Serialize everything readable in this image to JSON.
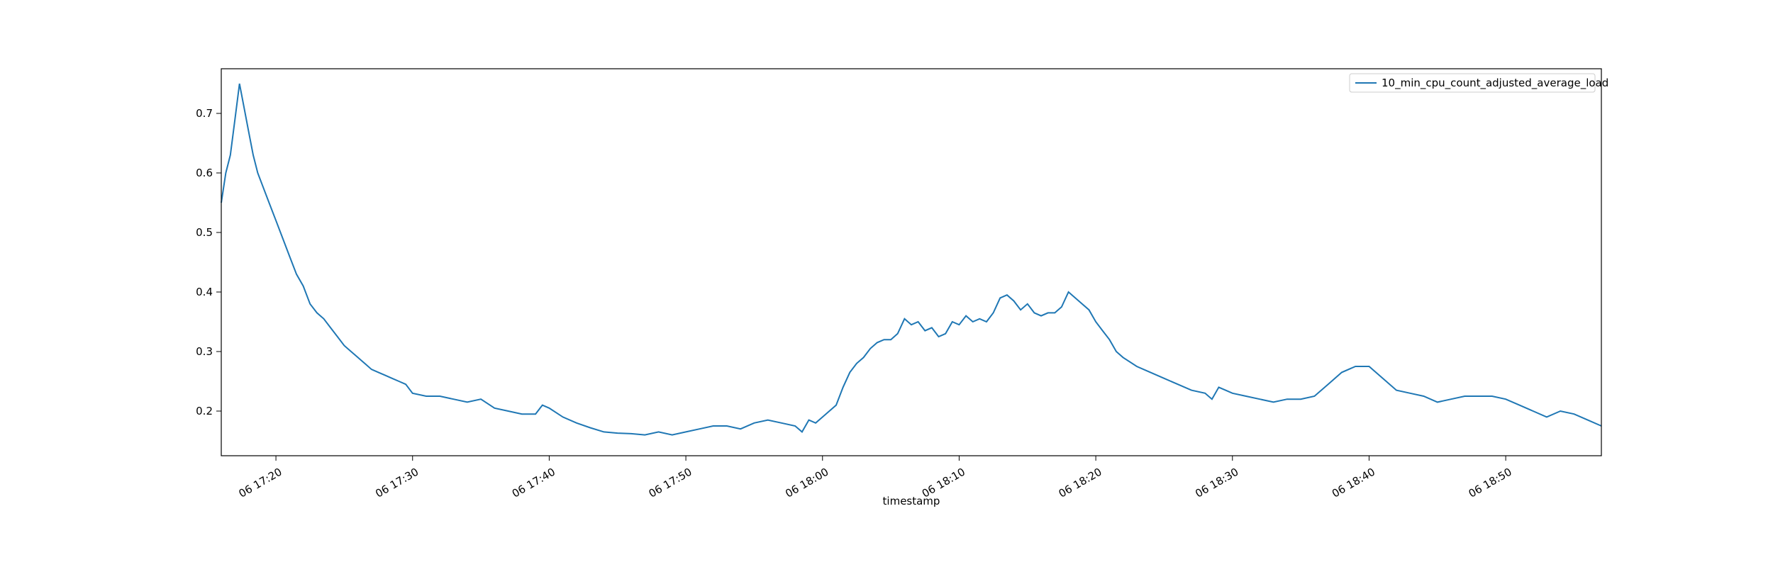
{
  "chart_data": {
    "type": "line",
    "title": "",
    "xlabel": "timestamp",
    "ylabel": "",
    "grid": false,
    "legend_placement": "top-right",
    "x_range": [
      "17:16:00",
      "18:57:00"
    ],
    "ylim": [
      0.125,
      0.775
    ],
    "x_ticks": [
      {
        "time": "17:20",
        "label": "06 17:20"
      },
      {
        "time": "17:30",
        "label": "06 17:30"
      },
      {
        "time": "17:40",
        "label": "06 17:40"
      },
      {
        "time": "17:50",
        "label": "06 17:50"
      },
      {
        "time": "18:00",
        "label": "06 18:00"
      },
      {
        "time": "18:10",
        "label": "06 18:10"
      },
      {
        "time": "18:20",
        "label": "06 18:20"
      },
      {
        "time": "18:30",
        "label": "06 18:30"
      },
      {
        "time": "18:40",
        "label": "06 18:40"
      },
      {
        "time": "18:50",
        "label": "06 18:50"
      }
    ],
    "y_ticks": [
      {
        "value": 0.2,
        "label": "0.2"
      },
      {
        "value": 0.3,
        "label": "0.3"
      },
      {
        "value": 0.4,
        "label": "0.4"
      },
      {
        "value": 0.5,
        "label": "0.5"
      },
      {
        "value": 0.6,
        "label": "0.6"
      },
      {
        "value": 0.7,
        "label": "0.7"
      }
    ],
    "series": [
      {
        "name": "10_min_cpu_count_adjusted_average_load",
        "color": "#1f77b4",
        "points": [
          [
            "17:16:00",
            0.55
          ],
          [
            "17:16:20",
            0.6
          ],
          [
            "17:16:40",
            0.63
          ],
          [
            "17:17:00",
            0.69
          ],
          [
            "17:17:20",
            0.75
          ],
          [
            "17:17:40",
            0.71
          ],
          [
            "17:18:00",
            0.67
          ],
          [
            "17:18:20",
            0.63
          ],
          [
            "17:18:40",
            0.6
          ],
          [
            "17:19:00",
            0.58
          ],
          [
            "17:19:30",
            0.55
          ],
          [
            "17:20:00",
            0.52
          ],
          [
            "17:20:30",
            0.49
          ],
          [
            "17:21:00",
            0.46
          ],
          [
            "17:21:30",
            0.43
          ],
          [
            "17:22:00",
            0.41
          ],
          [
            "17:22:30",
            0.38
          ],
          [
            "17:23:00",
            0.365
          ],
          [
            "17:23:30",
            0.355
          ],
          [
            "17:24:00",
            0.34
          ],
          [
            "17:24:30",
            0.325
          ],
          [
            "17:25:00",
            0.31
          ],
          [
            "17:25:30",
            0.3
          ],
          [
            "17:26:00",
            0.29
          ],
          [
            "17:26:30",
            0.28
          ],
          [
            "17:27:00",
            0.27
          ],
          [
            "17:27:30",
            0.265
          ],
          [
            "17:28:00",
            0.26
          ],
          [
            "17:28:30",
            0.255
          ],
          [
            "17:29:00",
            0.25
          ],
          [
            "17:29:30",
            0.245
          ],
          [
            "17:30:00",
            0.23
          ],
          [
            "17:31:00",
            0.225
          ],
          [
            "17:32:00",
            0.225
          ],
          [
            "17:33:00",
            0.22
          ],
          [
            "17:34:00",
            0.215
          ],
          [
            "17:35:00",
            0.22
          ],
          [
            "17:36:00",
            0.205
          ],
          [
            "17:37:00",
            0.2
          ],
          [
            "17:38:00",
            0.195
          ],
          [
            "17:39:00",
            0.195
          ],
          [
            "17:39:30",
            0.21
          ],
          [
            "17:40:00",
            0.205
          ],
          [
            "17:41:00",
            0.19
          ],
          [
            "17:42:00",
            0.18
          ],
          [
            "17:43:00",
            0.172
          ],
          [
            "17:44:00",
            0.165
          ],
          [
            "17:45:00",
            0.163
          ],
          [
            "17:46:00",
            0.162
          ],
          [
            "17:47:00",
            0.16
          ],
          [
            "17:48:00",
            0.165
          ],
          [
            "17:49:00",
            0.16
          ],
          [
            "17:50:00",
            0.165
          ],
          [
            "17:51:00",
            0.17
          ],
          [
            "17:52:00",
            0.175
          ],
          [
            "17:53:00",
            0.175
          ],
          [
            "17:54:00",
            0.17
          ],
          [
            "17:55:00",
            0.18
          ],
          [
            "17:56:00",
            0.185
          ],
          [
            "17:57:00",
            0.18
          ],
          [
            "17:58:00",
            0.175
          ],
          [
            "17:58:30",
            0.165
          ],
          [
            "17:59:00",
            0.185
          ],
          [
            "17:59:30",
            0.18
          ],
          [
            "18:00:00",
            0.19
          ],
          [
            "18:00:30",
            0.2
          ],
          [
            "18:01:00",
            0.21
          ],
          [
            "18:01:30",
            0.24
          ],
          [
            "18:02:00",
            0.265
          ],
          [
            "18:02:30",
            0.28
          ],
          [
            "18:03:00",
            0.29
          ],
          [
            "18:03:30",
            0.305
          ],
          [
            "18:04:00",
            0.315
          ],
          [
            "18:04:30",
            0.32
          ],
          [
            "18:05:00",
            0.32
          ],
          [
            "18:05:30",
            0.33
          ],
          [
            "18:06:00",
            0.355
          ],
          [
            "18:06:30",
            0.345
          ],
          [
            "18:07:00",
            0.35
          ],
          [
            "18:07:30",
            0.335
          ],
          [
            "18:08:00",
            0.34
          ],
          [
            "18:08:30",
            0.325
          ],
          [
            "18:09:00",
            0.33
          ],
          [
            "18:09:30",
            0.35
          ],
          [
            "18:10:00",
            0.345
          ],
          [
            "18:10:30",
            0.36
          ],
          [
            "18:11:00",
            0.35
          ],
          [
            "18:11:30",
            0.355
          ],
          [
            "18:12:00",
            0.35
          ],
          [
            "18:12:30",
            0.365
          ],
          [
            "18:13:00",
            0.39
          ],
          [
            "18:13:30",
            0.395
          ],
          [
            "18:14:00",
            0.385
          ],
          [
            "18:14:30",
            0.37
          ],
          [
            "18:15:00",
            0.38
          ],
          [
            "18:15:30",
            0.365
          ],
          [
            "18:16:00",
            0.36
          ],
          [
            "18:16:30",
            0.365
          ],
          [
            "18:17:00",
            0.365
          ],
          [
            "18:17:30",
            0.375
          ],
          [
            "18:18:00",
            0.4
          ],
          [
            "18:18:30",
            0.39
          ],
          [
            "18:19:00",
            0.38
          ],
          [
            "18:19:30",
            0.37
          ],
          [
            "18:20:00",
            0.35
          ],
          [
            "18:20:30",
            0.335
          ],
          [
            "18:21:00",
            0.32
          ],
          [
            "18:21:30",
            0.3
          ],
          [
            "18:22:00",
            0.29
          ],
          [
            "18:23:00",
            0.275
          ],
          [
            "18:24:00",
            0.265
          ],
          [
            "18:25:00",
            0.255
          ],
          [
            "18:26:00",
            0.245
          ],
          [
            "18:27:00",
            0.235
          ],
          [
            "18:28:00",
            0.23
          ],
          [
            "18:28:30",
            0.22
          ],
          [
            "18:29:00",
            0.24
          ],
          [
            "18:29:30",
            0.235
          ],
          [
            "18:30:00",
            0.23
          ],
          [
            "18:31:00",
            0.225
          ],
          [
            "18:32:00",
            0.22
          ],
          [
            "18:33:00",
            0.215
          ],
          [
            "18:34:00",
            0.22
          ],
          [
            "18:35:00",
            0.22
          ],
          [
            "18:36:00",
            0.225
          ],
          [
            "18:37:00",
            0.245
          ],
          [
            "18:38:00",
            0.265
          ],
          [
            "18:39:00",
            0.275
          ],
          [
            "18:40:00",
            0.275
          ],
          [
            "18:41:00",
            0.255
          ],
          [
            "18:42:00",
            0.235
          ],
          [
            "18:43:00",
            0.23
          ],
          [
            "18:44:00",
            0.225
          ],
          [
            "18:45:00",
            0.215
          ],
          [
            "18:46:00",
            0.22
          ],
          [
            "18:47:00",
            0.225
          ],
          [
            "18:48:00",
            0.225
          ],
          [
            "18:49:00",
            0.225
          ],
          [
            "18:50:00",
            0.22
          ],
          [
            "18:51:00",
            0.21
          ],
          [
            "18:52:00",
            0.2
          ],
          [
            "18:53:00",
            0.19
          ],
          [
            "18:54:00",
            0.2
          ],
          [
            "18:55:00",
            0.195
          ],
          [
            "18:56:00",
            0.185
          ],
          [
            "18:57:00",
            0.175
          ]
        ]
      }
    ]
  }
}
